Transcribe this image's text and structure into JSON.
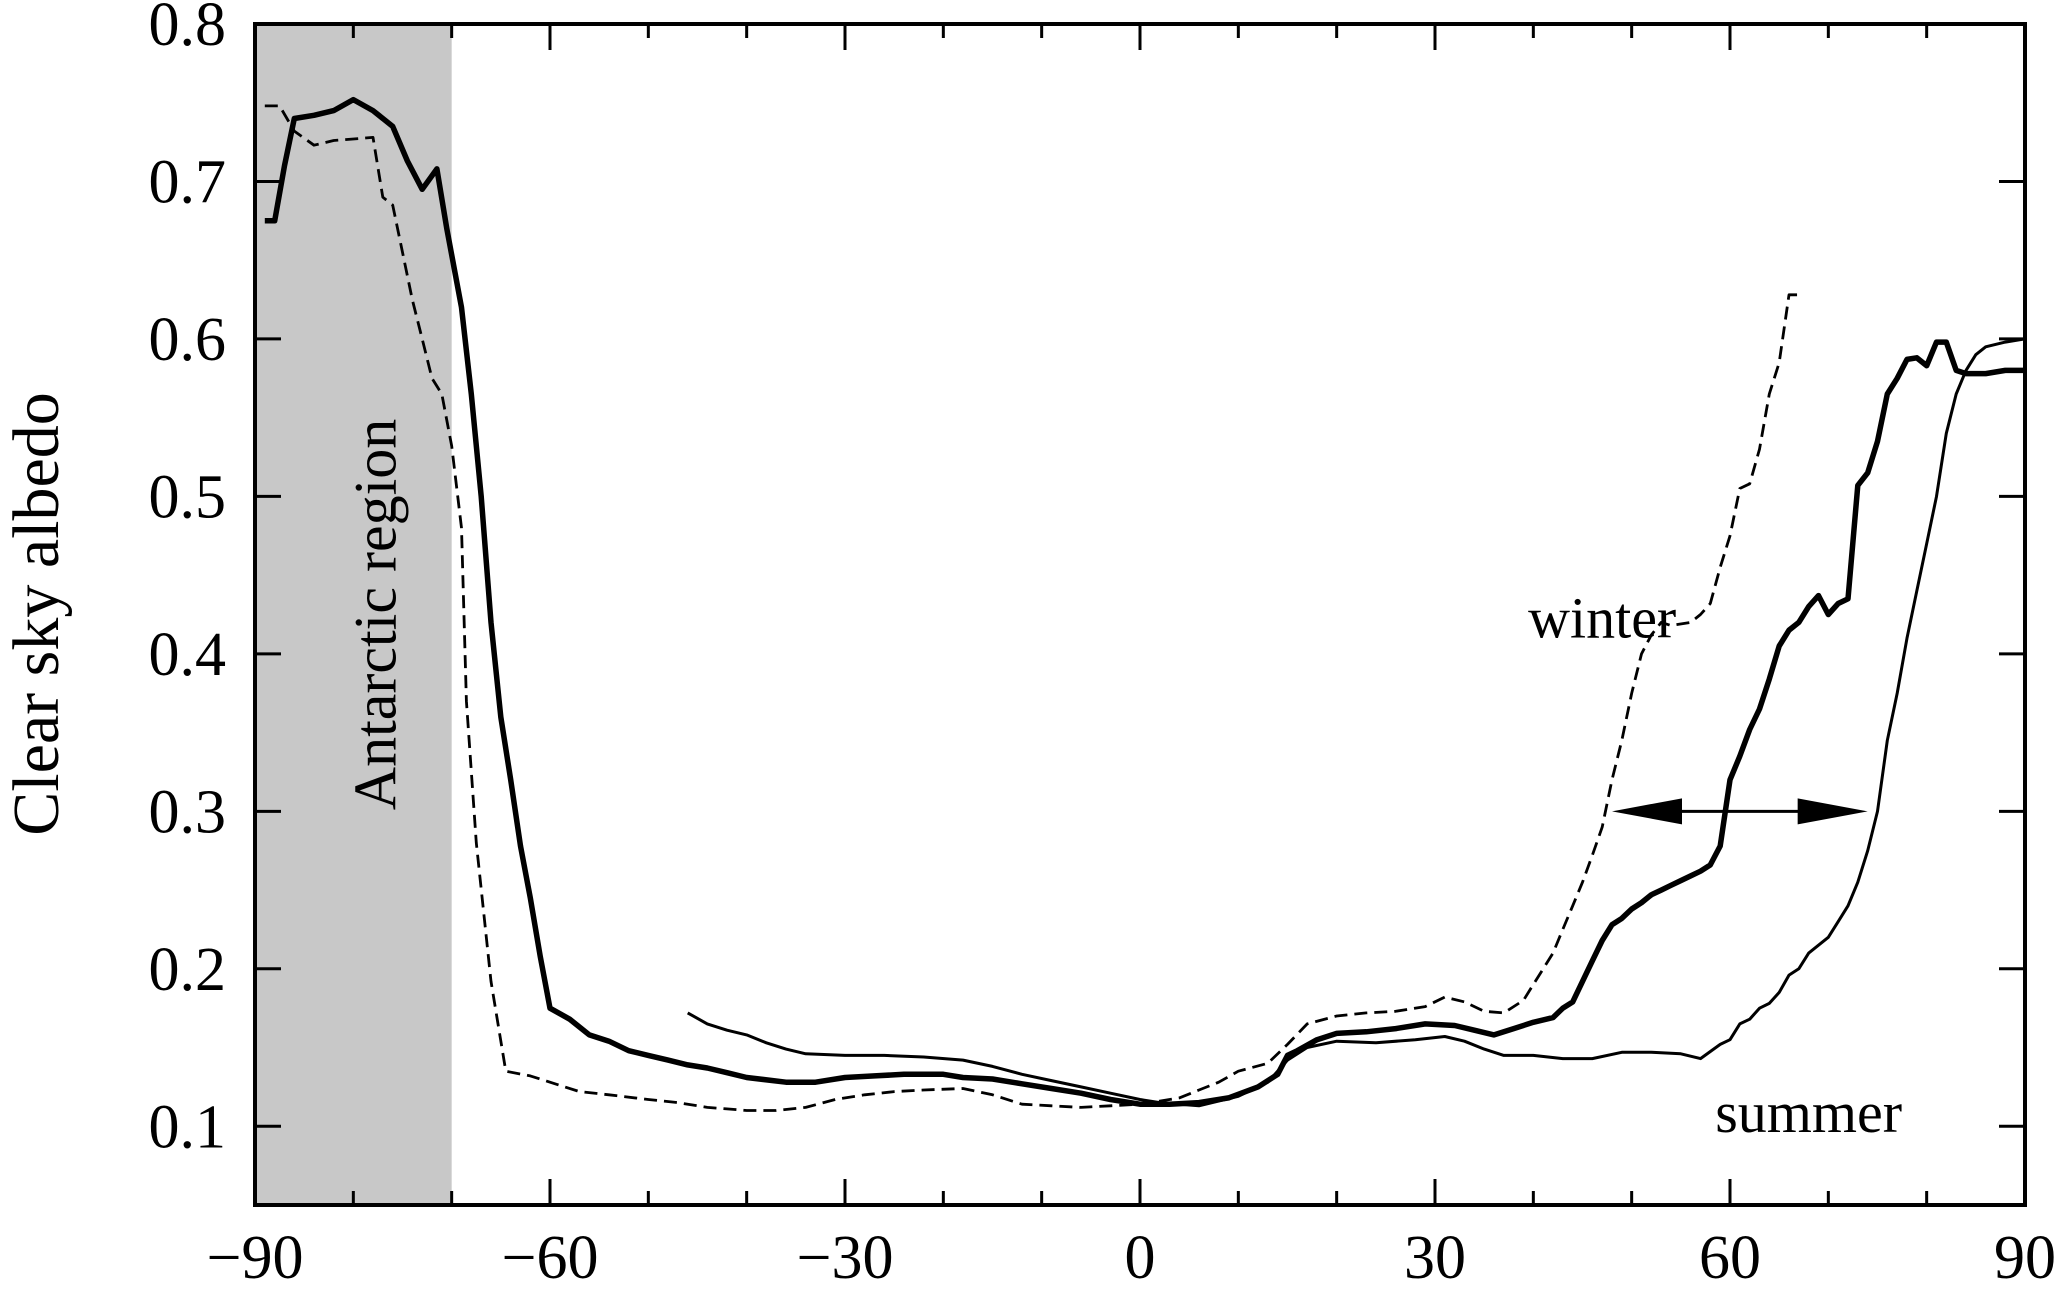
{
  "chart_data": {
    "type": "line",
    "title": "",
    "xlabel": "",
    "ylabel": "Clear sky albedo",
    "xlim": [
      -90,
      90
    ],
    "ylim": [
      0.05,
      0.8
    ],
    "xticks": [
      -90,
      -60,
      -30,
      0,
      30,
      60,
      90
    ],
    "xtick_labels": [
      "−90",
      "−60",
      "−30",
      "0",
      "30",
      "60",
      "90"
    ],
    "yticks": [
      0.1,
      0.2,
      0.3,
      0.4,
      0.5,
      0.6,
      0.7,
      0.8
    ],
    "ytick_labels": [
      "0.1",
      "0.2",
      "0.3",
      "0.4",
      "0.5",
      "0.6",
      "0.7",
      "0.8"
    ],
    "grid": false,
    "shaded_region": {
      "x": [
        -90,
        -70
      ],
      "label": "Antarctic region",
      "color": "#c8c8c8"
    },
    "annotations": [
      {
        "text": "winter",
        "x": 47,
        "y": 0.423
      },
      {
        "text": "summer",
        "x": 68,
        "y": 0.109
      }
    ],
    "arrow": {
      "x_from": 48,
      "x_to": 74,
      "y": 0.3,
      "double_headed": true
    },
    "series": [
      {
        "style": "solid-thick",
        "points": [
          [
            -89,
            0.675
          ],
          [
            -88,
            0.675
          ],
          [
            -87,
            0.71
          ],
          [
            -86,
            0.74
          ],
          [
            -84,
            0.742
          ],
          [
            -82,
            0.745
          ],
          [
            -80,
            0.752
          ],
          [
            -78,
            0.745
          ],
          [
            -76,
            0.735
          ],
          [
            -74.5,
            0.713
          ],
          [
            -73,
            0.695
          ],
          [
            -71.5,
            0.708
          ],
          [
            -70.5,
            0.67
          ],
          [
            -69,
            0.62
          ],
          [
            -68,
            0.565
          ],
          [
            -67,
            0.5
          ],
          [
            -66,
            0.42
          ],
          [
            -65,
            0.36
          ],
          [
            -64,
            0.32
          ],
          [
            -63,
            0.278
          ],
          [
            -62,
            0.245
          ],
          [
            -61,
            0.208
          ],
          [
            -60,
            0.175
          ],
          [
            -58,
            0.168
          ],
          [
            -56,
            0.158
          ],
          [
            -54,
            0.154
          ],
          [
            -52,
            0.148
          ],
          [
            -50,
            0.145
          ],
          [
            -48,
            0.142
          ],
          [
            -46,
            0.139
          ],
          [
            -44,
            0.137
          ],
          [
            -42,
            0.134
          ],
          [
            -40,
            0.131
          ],
          [
            -36,
            0.128
          ],
          [
            -33,
            0.128
          ],
          [
            -30,
            0.131
          ],
          [
            -27,
            0.132
          ],
          [
            -24,
            0.133
          ],
          [
            -20,
            0.133
          ],
          [
            -18,
            0.131
          ],
          [
            -15,
            0.13
          ],
          [
            -12,
            0.127
          ],
          [
            -9,
            0.124
          ],
          [
            -6,
            0.121
          ],
          [
            -3,
            0.117
          ],
          [
            0,
            0.114
          ],
          [
            3,
            0.114
          ],
          [
            6,
            0.115
          ],
          [
            9,
            0.118
          ],
          [
            12,
            0.125
          ],
          [
            14,
            0.133
          ],
          [
            15,
            0.145
          ],
          [
            16,
            0.148
          ],
          [
            18,
            0.155
          ],
          [
            20,
            0.159
          ],
          [
            23,
            0.16
          ],
          [
            26,
            0.162
          ],
          [
            29,
            0.165
          ],
          [
            32,
            0.164
          ],
          [
            34,
            0.161
          ],
          [
            36,
            0.158
          ],
          [
            38,
            0.162
          ],
          [
            40,
            0.166
          ],
          [
            42,
            0.169
          ],
          [
            43,
            0.175
          ],
          [
            44,
            0.179
          ],
          [
            45,
            0.192
          ],
          [
            46,
            0.205
          ],
          [
            47,
            0.218
          ],
          [
            48,
            0.228
          ],
          [
            49,
            0.232
          ],
          [
            50,
            0.238
          ],
          [
            51,
            0.242
          ],
          [
            52,
            0.247
          ],
          [
            53,
            0.25
          ],
          [
            54,
            0.253
          ],
          [
            55,
            0.256
          ],
          [
            56,
            0.259
          ],
          [
            57,
            0.262
          ],
          [
            58,
            0.266
          ],
          [
            59,
            0.278
          ],
          [
            60,
            0.32
          ],
          [
            61,
            0.335
          ],
          [
            62,
            0.352
          ],
          [
            63,
            0.365
          ],
          [
            64,
            0.384
          ],
          [
            65,
            0.405
          ],
          [
            66,
            0.415
          ],
          [
            67,
            0.42
          ],
          [
            68,
            0.43
          ],
          [
            69,
            0.437
          ],
          [
            70,
            0.425
          ],
          [
            71,
            0.432
          ],
          [
            72,
            0.435
          ],
          [
            73,
            0.507
          ],
          [
            74,
            0.515
          ],
          [
            75,
            0.535
          ],
          [
            76,
            0.565
          ],
          [
            77,
            0.575
          ],
          [
            78,
            0.587
          ],
          [
            79,
            0.588
          ],
          [
            80,
            0.583
          ],
          [
            81,
            0.598
          ],
          [
            82,
            0.598
          ],
          [
            83,
            0.58
          ],
          [
            84,
            0.578
          ],
          [
            86,
            0.578
          ],
          [
            88,
            0.58
          ],
          [
            90,
            0.58
          ]
        ]
      },
      {
        "style": "dashed",
        "points": [
          [
            -89,
            0.748
          ],
          [
            -87.5,
            0.748
          ],
          [
            -86,
            0.732
          ],
          [
            -84,
            0.723
          ],
          [
            -82,
            0.726
          ],
          [
            -80,
            0.727
          ],
          [
            -78,
            0.728
          ],
          [
            -77,
            0.69
          ],
          [
            -76,
            0.685
          ],
          [
            -75,
            0.655
          ],
          [
            -74,
            0.625
          ],
          [
            -73,
            0.6
          ],
          [
            -72,
            0.575
          ],
          [
            -71,
            0.565
          ],
          [
            -70,
            0.532
          ],
          [
            -69,
            0.48
          ],
          [
            -68.5,
            0.37
          ],
          [
            -67.5,
            0.28
          ],
          [
            -66,
            0.192
          ],
          [
            -64.5,
            0.135
          ],
          [
            -62,
            0.132
          ],
          [
            -60,
            0.128
          ],
          [
            -57,
            0.122
          ],
          [
            -54,
            0.12
          ],
          [
            -50,
            0.117
          ],
          [
            -47,
            0.115
          ],
          [
            -44,
            0.112
          ],
          [
            -42,
            0.111
          ],
          [
            -40,
            0.11
          ],
          [
            -37,
            0.11
          ],
          [
            -34,
            0.112
          ],
          [
            -31,
            0.117
          ],
          [
            -28,
            0.12
          ],
          [
            -25,
            0.122
          ],
          [
            -22,
            0.123
          ],
          [
            -18,
            0.124
          ],
          [
            -15,
            0.12
          ],
          [
            -12,
            0.114
          ],
          [
            -9,
            0.113
          ],
          [
            -6,
            0.112
          ],
          [
            -3,
            0.113
          ],
          [
            0,
            0.114
          ],
          [
            2,
            0.116
          ],
          [
            4,
            0.118
          ],
          [
            6,
            0.123
          ],
          [
            8,
            0.128
          ],
          [
            10,
            0.135
          ],
          [
            13,
            0.14
          ],
          [
            15,
            0.152
          ],
          [
            17,
            0.165
          ],
          [
            20,
            0.17
          ],
          [
            23,
            0.172
          ],
          [
            26,
            0.173
          ],
          [
            29,
            0.176
          ],
          [
            31,
            0.182
          ],
          [
            33,
            0.179
          ],
          [
            35,
            0.173
          ],
          [
            37,
            0.172
          ],
          [
            39,
            0.18
          ],
          [
            40,
            0.19
          ],
          [
            41,
            0.2
          ],
          [
            42,
            0.21
          ],
          [
            43,
            0.225
          ],
          [
            44,
            0.24
          ],
          [
            45,
            0.255
          ],
          [
            46,
            0.272
          ],
          [
            47,
            0.29
          ],
          [
            48,
            0.32
          ],
          [
            49,
            0.345
          ],
          [
            50,
            0.375
          ],
          [
            51,
            0.4
          ],
          [
            52,
            0.412
          ],
          [
            53,
            0.42
          ],
          [
            54,
            0.418
          ],
          [
            56,
            0.42
          ],
          [
            57,
            0.425
          ],
          [
            58,
            0.432
          ],
          [
            59,
            0.455
          ],
          [
            60,
            0.475
          ],
          [
            61,
            0.505
          ],
          [
            62,
            0.508
          ],
          [
            63,
            0.53
          ],
          [
            64,
            0.565
          ],
          [
            65,
            0.585
          ],
          [
            66,
            0.628
          ],
          [
            67,
            0.628
          ]
        ]
      },
      {
        "style": "solid-thin",
        "points": [
          [
            -46,
            0.172
          ],
          [
            -44,
            0.165
          ],
          [
            -42,
            0.161
          ],
          [
            -40,
            0.158
          ],
          [
            -38,
            0.153
          ],
          [
            -36,
            0.149
          ],
          [
            -34,
            0.146
          ],
          [
            -30,
            0.145
          ],
          [
            -26,
            0.145
          ],
          [
            -22,
            0.144
          ],
          [
            -18,
            0.142
          ],
          [
            -15,
            0.138
          ],
          [
            -12,
            0.133
          ],
          [
            -9,
            0.129
          ],
          [
            -6,
            0.125
          ],
          [
            -3,
            0.121
          ],
          [
            0,
            0.117
          ],
          [
            2,
            0.115
          ],
          [
            4,
            0.114
          ],
          [
            6,
            0.113
          ],
          [
            8,
            0.116
          ],
          [
            10,
            0.119
          ],
          [
            13,
            0.128
          ],
          [
            15,
            0.142
          ],
          [
            17,
            0.15
          ],
          [
            20,
            0.154
          ],
          [
            24,
            0.153
          ],
          [
            28,
            0.155
          ],
          [
            31,
            0.157
          ],
          [
            33,
            0.154
          ],
          [
            35,
            0.149
          ],
          [
            37,
            0.145
          ],
          [
            40,
            0.145
          ],
          [
            43,
            0.143
          ],
          [
            46,
            0.143
          ],
          [
            49,
            0.147
          ],
          [
            52,
            0.147
          ],
          [
            55,
            0.146
          ],
          [
            57,
            0.143
          ],
          [
            59,
            0.152
          ],
          [
            60,
            0.155
          ],
          [
            61,
            0.165
          ],
          [
            62,
            0.168
          ],
          [
            63,
            0.175
          ],
          [
            64,
            0.178
          ],
          [
            65,
            0.185
          ],
          [
            66,
            0.196
          ],
          [
            67,
            0.2
          ],
          [
            68,
            0.21
          ],
          [
            69,
            0.215
          ],
          [
            70,
            0.22
          ],
          [
            71,
            0.23
          ],
          [
            72,
            0.24
          ],
          [
            73,
            0.255
          ],
          [
            74,
            0.275
          ],
          [
            75,
            0.3
          ],
          [
            76,
            0.345
          ],
          [
            77,
            0.375
          ],
          [
            78,
            0.41
          ],
          [
            79,
            0.44
          ],
          [
            80,
            0.47
          ],
          [
            81,
            0.5
          ],
          [
            82,
            0.54
          ],
          [
            83,
            0.565
          ],
          [
            84,
            0.58
          ],
          [
            85,
            0.59
          ],
          [
            86,
            0.595
          ],
          [
            88,
            0.598
          ],
          [
            90,
            0.6
          ]
        ]
      }
    ]
  }
}
